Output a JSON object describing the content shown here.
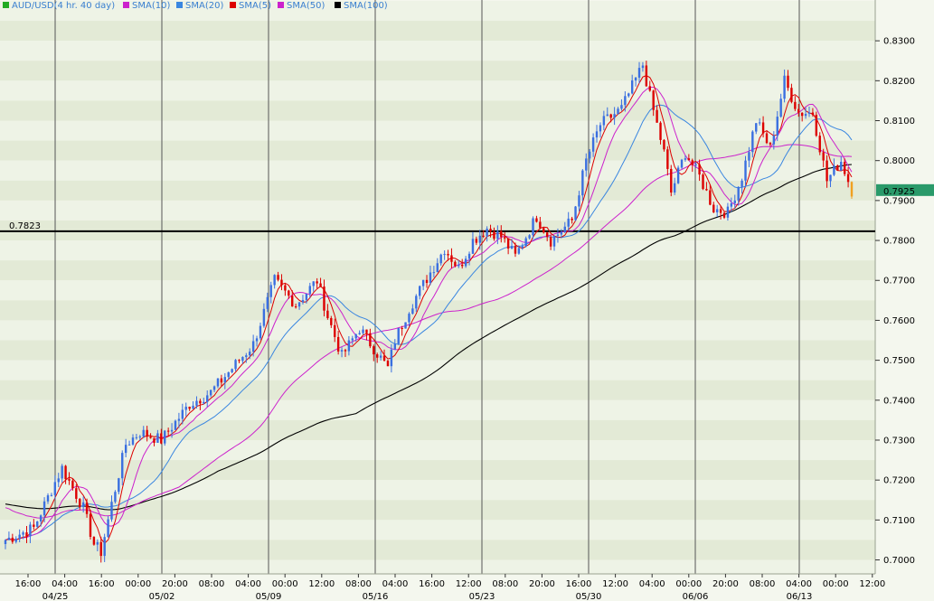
{
  "chart_data": {
    "type": "candlestick",
    "symbol_label": "AUD/USD(4 hr.  40 day)",
    "legend": [
      {
        "label": "AUD/USD(4 hr.  40 day)",
        "swatch": "#22aa22",
        "text_color": "#3a7fd0"
      },
      {
        "label": "SMA(10)",
        "swatch": "#cc22cc",
        "text_color": "#3a7fd0"
      },
      {
        "label": "SMA(20)",
        "swatch": "#3a86e0",
        "text_color": "#3a7fd0"
      },
      {
        "label": "SMA(5)",
        "swatch": "#dd0000",
        "text_color": "#3a7fd0"
      },
      {
        "label": "SMA(50)",
        "swatch": "#cc22cc",
        "text_color": "#3a7fd0"
      },
      {
        "label": "SMA(100)",
        "swatch": "#000000",
        "text_color": "#3a7fd0"
      }
    ],
    "ylim": [
      0.6965,
      0.8375
    ],
    "y_ticks": [
      "0.8300",
      "0.8200",
      "0.8100",
      "0.8000",
      "0.7900",
      "0.7800",
      "0.7700",
      "0.7600",
      "0.7500",
      "0.7400",
      "0.7300",
      "0.7200",
      "0.7100",
      "0.7000"
    ],
    "x_ticks": [
      "16:00",
      "04:00",
      "16:00",
      "00:00",
      "20:00",
      "08:00",
      "04:00",
      "00:00",
      "12:00",
      "08:00",
      "04:00",
      "16:00",
      "12:00",
      "08:00",
      "20:00",
      "16:00",
      "12:00",
      "04:00",
      "00:00",
      "20:00",
      "08:00",
      "04:00",
      "00:00",
      "12:00"
    ],
    "date_labels": [
      "04/25",
      "05/02",
      "05/09",
      "05/16",
      "05/23",
      "05/30",
      "06/06",
      "06/13"
    ],
    "horizontal_line": {
      "value": 0.7823,
      "label": "0.7823"
    },
    "last_price": {
      "value": 0.7925,
      "label": "0.7925"
    },
    "colors": {
      "up": "#3a6fe0",
      "down": "#dd0000",
      "sma10": "#cc22cc",
      "sma20": "#3a86e0",
      "sma5": "#dd0000",
      "sma50": "#cc22cc",
      "sma100": "#000000",
      "last_price_bg": "#2a9a6a",
      "last_bar": "#f0a020",
      "band_light": "#eef3e6",
      "band_dark": "#e3ead6"
    },
    "grid": true,
    "candles": {
      "count": 240,
      "anchors": [
        [
          0,
          0.705
        ],
        [
          8,
          0.708
        ],
        [
          14,
          0.7195
        ],
        [
          16,
          0.723
        ],
        [
          22,
          0.713
        ],
        [
          25,
          0.704
        ],
        [
          27,
          0.702
        ],
        [
          30,
          0.714
        ],
        [
          34,
          0.729
        ],
        [
          38,
          0.732
        ],
        [
          44,
          0.73
        ],
        [
          52,
          0.739
        ],
        [
          58,
          0.742
        ],
        [
          64,
          0.748
        ],
        [
          70,
          0.754
        ],
        [
          76,
          0.77
        ],
        [
          82,
          0.764
        ],
        [
          88,
          0.77
        ],
        [
          91,
          0.761
        ],
        [
          95,
          0.751
        ],
        [
          100,
          0.758
        ],
        [
          104,
          0.753
        ],
        [
          108,
          0.748
        ],
        [
          110,
          0.755
        ],
        [
          114,
          0.763
        ],
        [
          120,
          0.772
        ],
        [
          124,
          0.778
        ],
        [
          128,
          0.773
        ],
        [
          132,
          0.78
        ],
        [
          136,
          0.783
        ],
        [
          140,
          0.781
        ],
        [
          144,
          0.776
        ],
        [
          150,
          0.786
        ],
        [
          154,
          0.78
        ],
        [
          160,
          0.785
        ],
        [
          164,
          0.8
        ],
        [
          168,
          0.809
        ],
        [
          174,
          0.813
        ],
        [
          180,
          0.824
        ],
        [
          182,
          0.816
        ],
        [
          186,
          0.802
        ],
        [
          188,
          0.792
        ],
        [
          192,
          0.802
        ],
        [
          196,
          0.796
        ],
        [
          200,
          0.788
        ],
        [
          204,
          0.787
        ],
        [
          208,
          0.796
        ],
        [
          212,
          0.81
        ],
        [
          216,
          0.803
        ],
        [
          220,
          0.82
        ],
        [
          224,
          0.812
        ],
        [
          228,
          0.812
        ],
        [
          232,
          0.795
        ],
        [
          236,
          0.8
        ],
        [
          239,
          0.7925
        ]
      ]
    }
  }
}
